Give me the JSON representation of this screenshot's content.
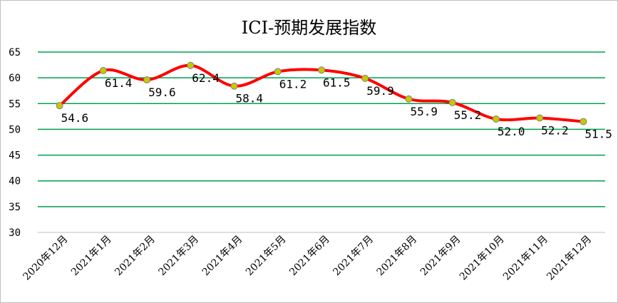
{
  "chart_data": {
    "type": "line",
    "title": "ICI-预期发展指数",
    "xlabel": "",
    "ylabel": "",
    "categories": [
      "2020年12月",
      "2021年1月",
      "2021年2月",
      "2021年3月",
      "2021年4月",
      "2021年5月",
      "2021年6月",
      "2021年7月",
      "2021年8月",
      "2021年9月",
      "2021年10月",
      "2021年11月",
      "2021年12月"
    ],
    "series": [
      {
        "values": [
          54.6,
          61.4,
          59.6,
          62.4,
          58.4,
          61.2,
          61.5,
          59.9,
          55.9,
          55.2,
          52.0,
          52.2,
          51.5
        ],
        "data_labels": [
          "54.6",
          "61.4",
          "59.6",
          "62.4",
          "58.4",
          "61.2",
          "61.5",
          "59.9",
          "55.9",
          "55.2",
          "52.0",
          "52.2",
          "51.5"
        ],
        "line_color": "#ff0000",
        "marker_color": "#c8c800"
      }
    ],
    "yticks": [
      "30",
      "35",
      "40",
      "45",
      "50",
      "55",
      "60",
      "65"
    ],
    "ylim": [
      30,
      65
    ],
    "grid": true,
    "grid_color": "#00a050",
    "legend": "none",
    "smooth": true
  }
}
